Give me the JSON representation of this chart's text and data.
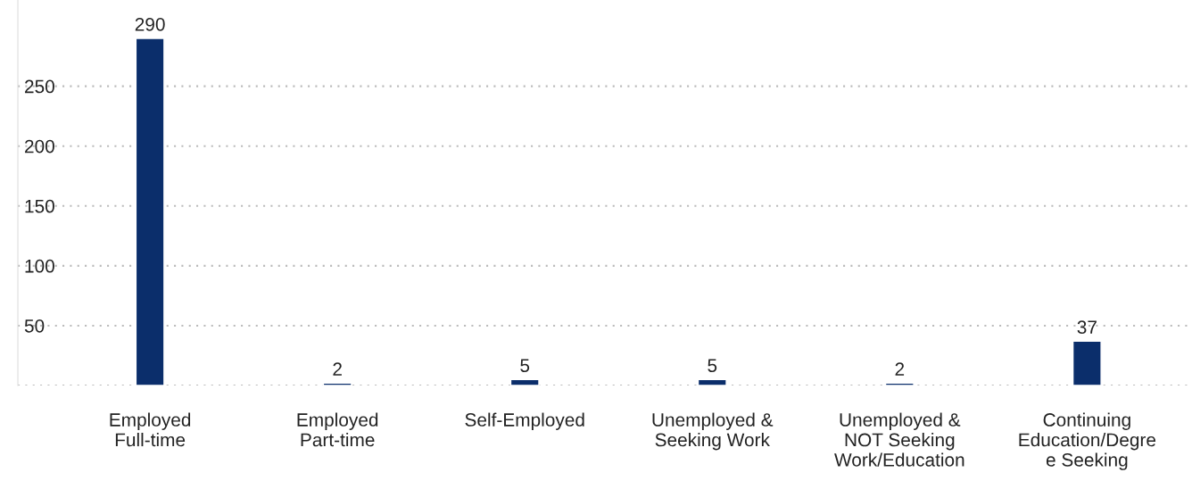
{
  "chart_data": {
    "type": "bar",
    "categories": [
      "Employed\nFull-time",
      "Employed\nPart-time",
      "Self-Employed",
      "Unemployed &\nSeeking Work",
      "Unemployed &\nNOT Seeking\nWork/Education",
      "Continuing\nEducation/Degre\ne Seeking"
    ],
    "values": [
      290,
      2,
      5,
      5,
      2,
      37
    ],
    "color": "#0b2e6b",
    "ylim": [
      0,
      322
    ],
    "yticks": [
      {
        "value": 0,
        "label": null
      },
      50,
      100,
      150,
      200,
      250
    ],
    "grid": "y",
    "data_labels": true
  }
}
